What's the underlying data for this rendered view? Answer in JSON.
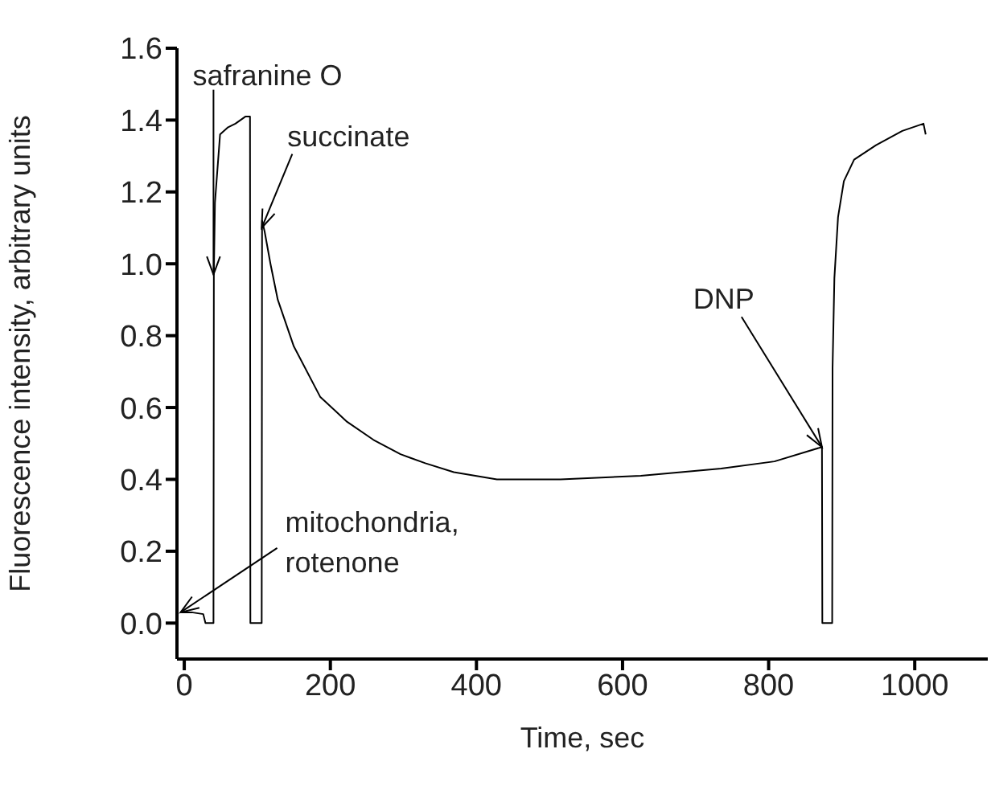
{
  "chart_data": {
    "type": "line",
    "xlabel": "Time, sec",
    "ylabel": "Fluorescence intensity, arbitrary units",
    "x": [
      -4,
      10,
      26,
      29,
      40,
      40.5,
      42,
      49,
      60,
      70,
      84,
      90,
      90.5,
      106,
      106.5,
      110,
      118,
      128,
      150,
      186,
      223,
      259,
      296,
      330,
      369,
      428,
      515,
      625,
      735,
      808,
      873,
      873.5,
      887,
      887.5,
      890,
      895,
      903,
      917,
      947,
      983,
      1012,
      1015
    ],
    "series": [
      {
        "color": "#000000",
        "values": [
          0.03,
          0.03,
          0.025,
          0,
          0,
          0.97,
          1.17,
          1.36,
          1.38,
          1.39,
          1.41,
          1.41,
          0,
          0,
          1.12,
          1.09,
          1.0,
          0.9,
          0.77,
          0.63,
          0.56,
          0.51,
          0.47,
          0.445,
          0.42,
          0.4,
          0.4,
          0.41,
          0.43,
          0.45,
          0.49,
          0,
          0,
          0.71,
          0.96,
          1.13,
          1.23,
          1.29,
          1.33,
          1.37,
          1.39,
          1.36
        ]
      }
    ],
    "xlim": [
      -10,
      1100
    ],
    "xticks": [
      0,
      200,
      400,
      600,
      800,
      1000
    ],
    "ylim": [
      -0.1,
      1.6
    ],
    "yticks": [
      {
        "value": 0,
        "label": "0.0"
      },
      {
        "value": 0.2,
        "label": "0.2"
      },
      {
        "value": 0.4,
        "label": "0.4"
      },
      {
        "value": 0.6,
        "label": "0.6"
      },
      {
        "value": 0.8,
        "label": "0.8"
      },
      {
        "value": 1,
        "label": "1.0"
      },
      {
        "value": 1.2,
        "label": "1.2"
      },
      {
        "value": 1.4,
        "label": "1.4"
      },
      {
        "value": 1.6,
        "label": "1.6"
      }
    ],
    "grid": false,
    "marker": "none",
    "line_style": "solid",
    "annotations": [
      {
        "text": "safranine O",
        "x": 40,
        "y": 0.97
      },
      {
        "text": "succinate",
        "x": 106,
        "y": 1.1
      },
      {
        "text": "DNP",
        "x": 873,
        "y": 0.49
      },
      {
        "text": "mitochondria,\nrotenone",
        "x": -5,
        "y": 0.03
      }
    ]
  }
}
